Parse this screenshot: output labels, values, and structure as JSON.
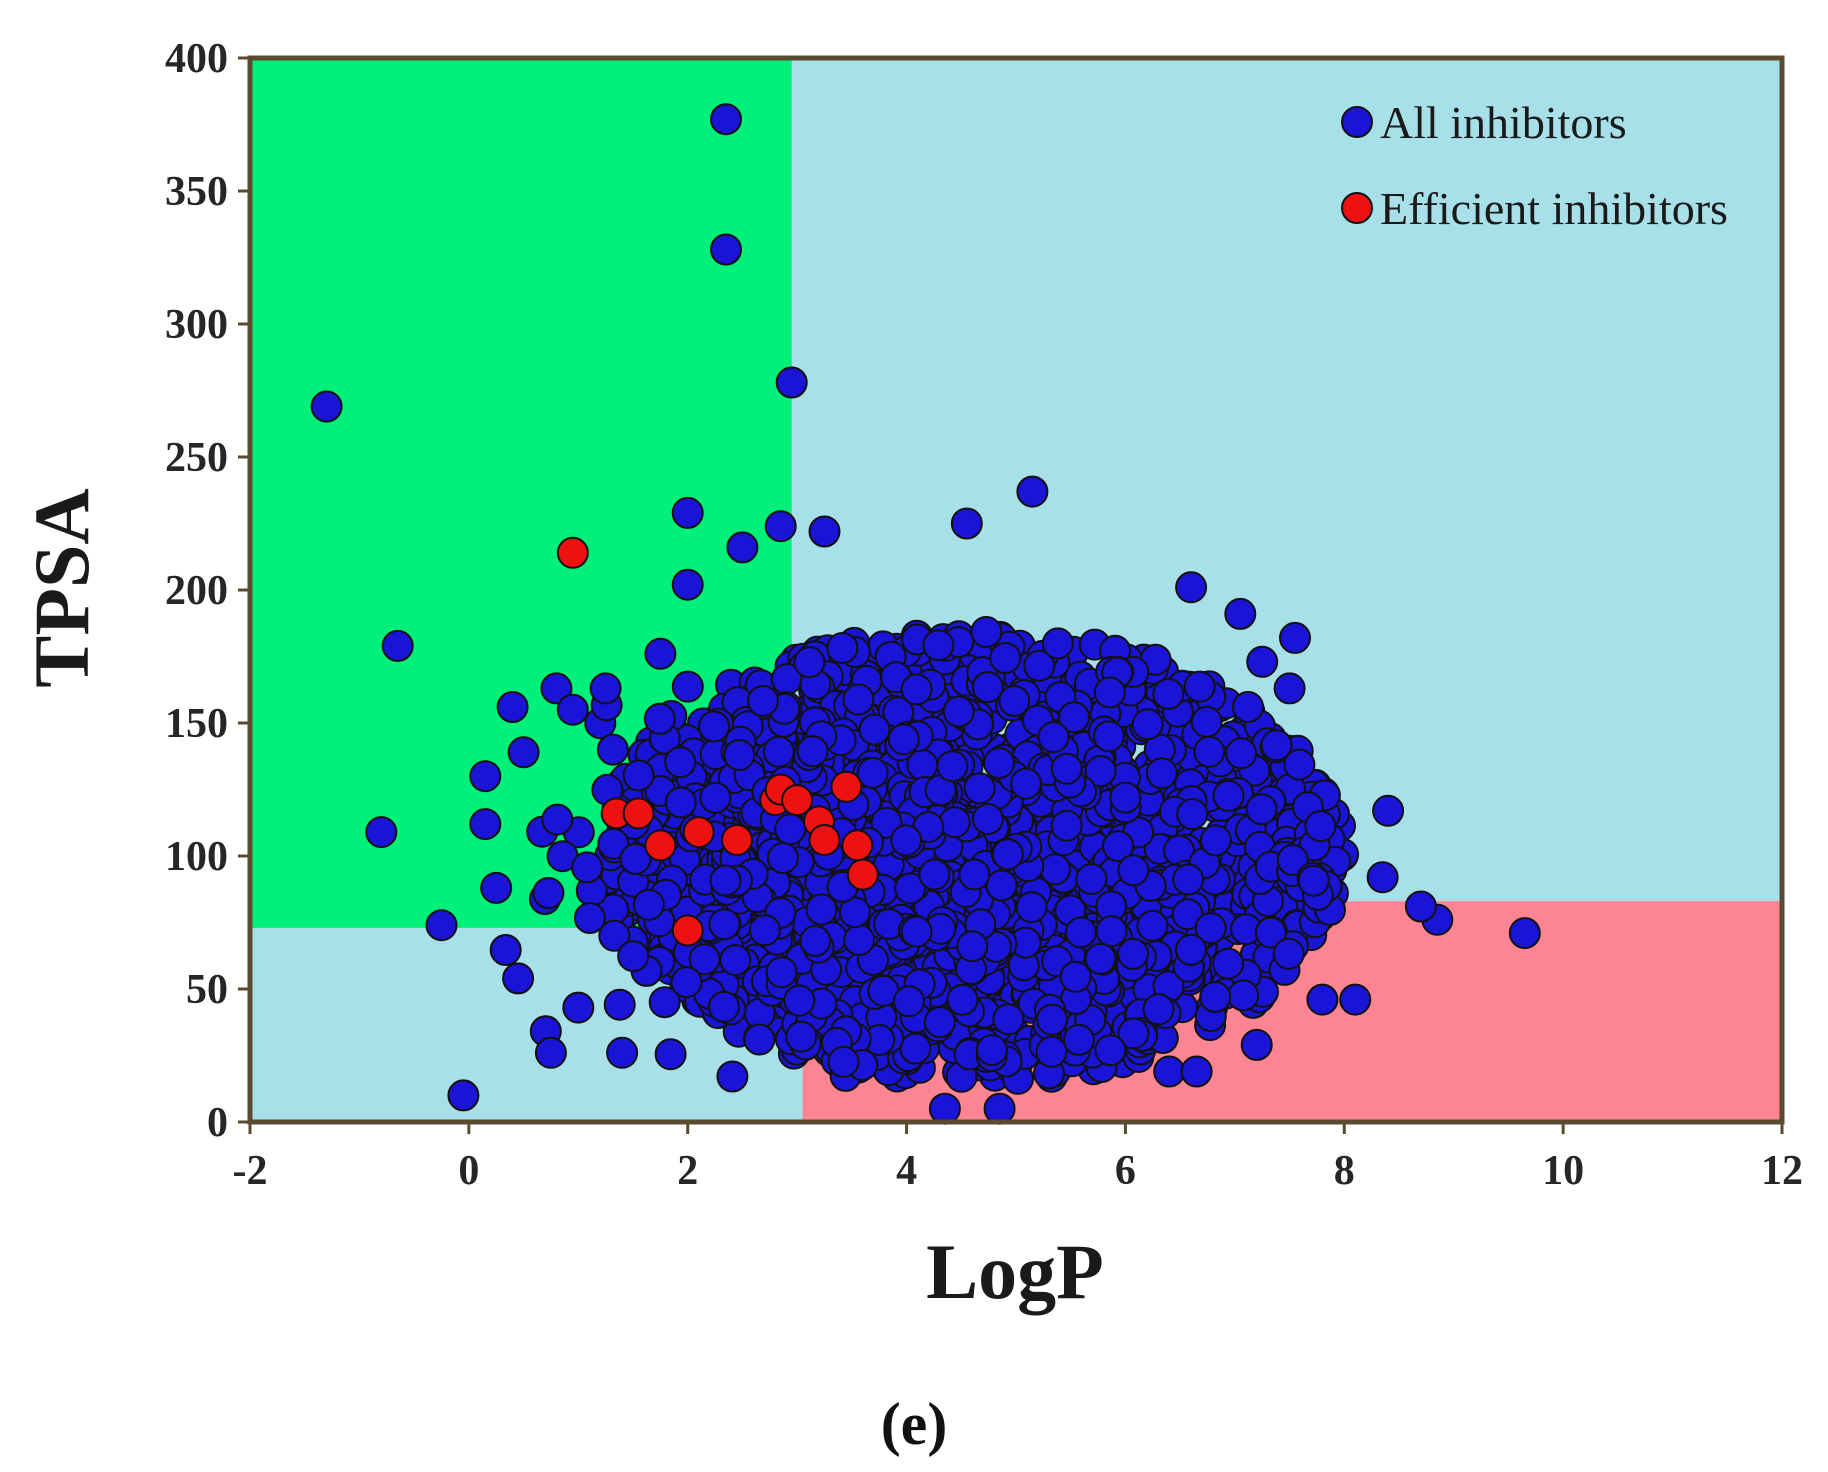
{
  "panel_label": "(e)",
  "chart_data": {
    "type": "scatter",
    "title": "",
    "xlabel": "LogP",
    "ylabel": "TPSA",
    "xlim": [
      -2,
      12
    ],
    "ylim": [
      0,
      400
    ],
    "xticks": [
      -2,
      0,
      2,
      4,
      6,
      8,
      10,
      12
    ],
    "yticks": [
      0,
      50,
      100,
      150,
      200,
      250,
      300,
      350,
      400
    ],
    "grid": false,
    "legend_position": "top-right",
    "colors": {
      "all": "#1a14d6",
      "efficient": "#ee1111",
      "marker_edge": "#111111",
      "region_green": "#00f07a",
      "region_blue": "#a8e0ea",
      "region_red": "#fd8492",
      "frame": "#5a4a30"
    },
    "regions": [
      {
        "name": "region-green",
        "color": "green",
        "x": [
          -2,
          2.95
        ],
        "y": [
          73,
          400
        ]
      },
      {
        "name": "region-red",
        "color": "red",
        "x": [
          3.05,
          12
        ],
        "y": [
          0,
          83
        ]
      }
    ],
    "series": [
      {
        "name": "All inhibitors",
        "color": "all",
        "outliers": [
          {
            "x": 2.35,
            "y": 377
          },
          {
            "x": 2.35,
            "y": 328
          },
          {
            "x": 2.95,
            "y": 278
          },
          {
            "x": -1.3,
            "y": 269
          },
          {
            "x": 5.15,
            "y": 237
          },
          {
            "x": 2.0,
            "y": 229
          },
          {
            "x": 4.55,
            "y": 225
          },
          {
            "x": 2.85,
            "y": 224
          },
          {
            "x": 3.25,
            "y": 222
          },
          {
            "x": 2.5,
            "y": 216
          },
          {
            "x": 2.0,
            "y": 202
          },
          {
            "x": -0.65,
            "y": 179
          },
          {
            "x": 7.55,
            "y": 182
          },
          {
            "x": 7.5,
            "y": 163
          },
          {
            "x": 6.6,
            "y": 201
          },
          {
            "x": 7.05,
            "y": 191
          },
          {
            "x": 7.25,
            "y": 173
          },
          {
            "x": 8.4,
            "y": 117
          },
          {
            "x": 8.85,
            "y": 76
          },
          {
            "x": 9.65,
            "y": 71
          },
          {
            "x": 0.8,
            "y": 163
          },
          {
            "x": 1.25,
            "y": 163
          },
          {
            "x": 0.4,
            "y": 156
          },
          {
            "x": -0.8,
            "y": 109
          },
          {
            "x": 0.15,
            "y": 112
          },
          {
            "x": 0.15,
            "y": 130
          },
          {
            "x": 0.5,
            "y": 139
          },
          {
            "x": -0.25,
            "y": 74
          },
          {
            "x": 0.45,
            "y": 54
          },
          {
            "x": 0.75,
            "y": 26
          },
          {
            "x": -0.05,
            "y": 10
          },
          {
            "x": 1.4,
            "y": 26
          },
          {
            "x": 1.0,
            "y": 43
          },
          {
            "x": 4.35,
            "y": 5
          },
          {
            "x": 4.85,
            "y": 5
          },
          {
            "x": 6.4,
            "y": 19
          },
          {
            "x": 6.65,
            "y": 19
          },
          {
            "x": 7.2,
            "y": 29
          },
          {
            "x": 7.8,
            "y": 46
          },
          {
            "x": 8.1,
            "y": 46
          },
          {
            "x": 8.35,
            "y": 92
          },
          {
            "x": 8.7,
            "y": 81
          },
          {
            "x": 0.25,
            "y": 88
          },
          {
            "x": 0.95,
            "y": 155
          },
          {
            "x": 1.75,
            "y": 176
          }
        ],
        "cluster": {
          "ellipse_center": {
            "x": 4.6,
            "y": 100
          },
          "ellipse_radius": {
            "x": 3.4,
            "y": 85
          },
          "dense_center": {
            "x": 3.4,
            "y": 95
          },
          "dense_radius": {
            "x": 2.2,
            "y": 60
          },
          "seed": 1337,
          "count_ellipse": 1500,
          "count_dense": 700
        }
      },
      {
        "name": "Efficient inhibitors",
        "color": "efficient",
        "points": [
          {
            "x": 0.95,
            "y": 214
          },
          {
            "x": 1.35,
            "y": 116
          },
          {
            "x": 1.55,
            "y": 116
          },
          {
            "x": 1.75,
            "y": 104
          },
          {
            "x": 2.1,
            "y": 109
          },
          {
            "x": 2.45,
            "y": 106
          },
          {
            "x": 2.8,
            "y": 121
          },
          {
            "x": 2.85,
            "y": 125
          },
          {
            "x": 3.0,
            "y": 121
          },
          {
            "x": 3.2,
            "y": 113
          },
          {
            "x": 3.25,
            "y": 106
          },
          {
            "x": 3.45,
            "y": 126
          },
          {
            "x": 3.55,
            "y": 104
          },
          {
            "x": 3.6,
            "y": 93
          },
          {
            "x": 2.0,
            "y": 72
          }
        ]
      }
    ]
  }
}
